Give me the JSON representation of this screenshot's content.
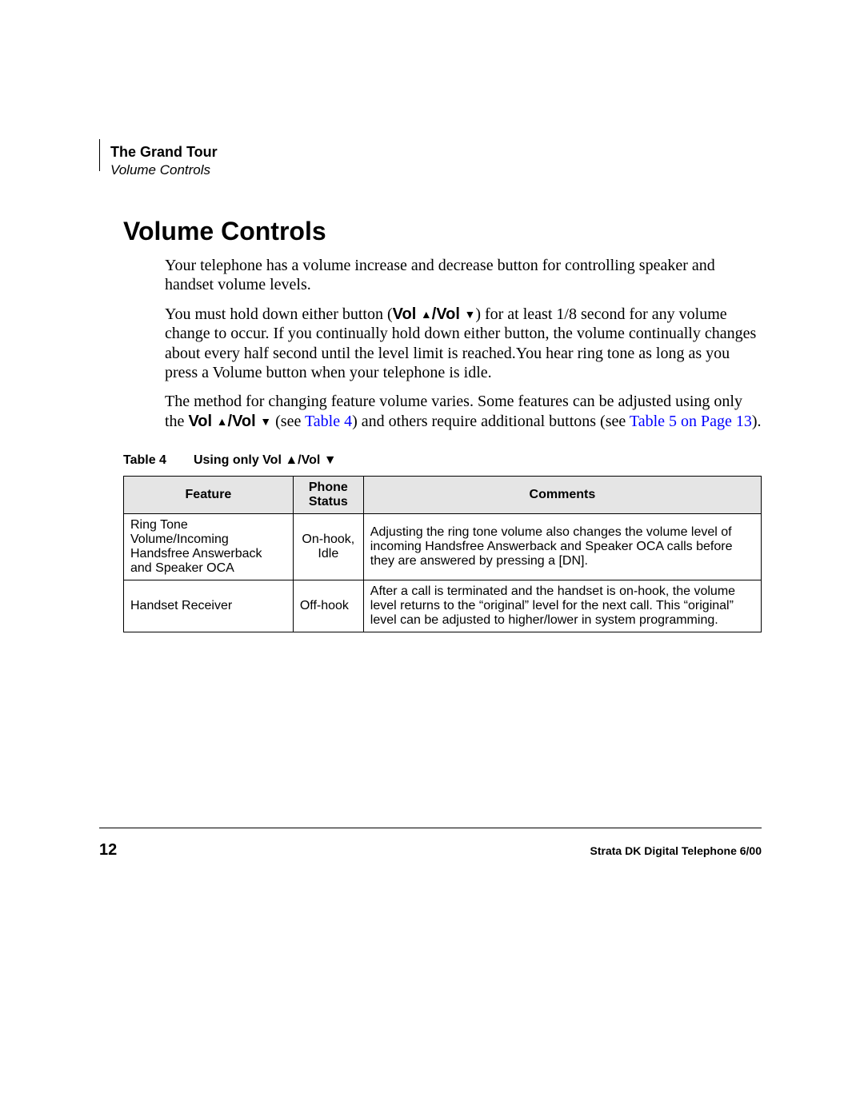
{
  "header": {
    "chapter": "The Grand Tour",
    "section": "Volume Controls"
  },
  "title": "Volume Controls",
  "paragraphs": {
    "p1": "Your telephone has a volume increase and decrease button for controlling speaker and handset volume levels.",
    "p2a": "You must hold down either button (",
    "p2_vol": "Vol",
    "p2b": ") for at least 1/8 second for any volume change to occur. If you continually hold down either button, the volume continually changes about every half second until the level limit is reached.You hear ring tone as long as you press a Volume button when your telephone is idle.",
    "p3a": "The method for changing feature volume varies. Some features can be adjusted using only the ",
    "p3_vol": "Vol",
    "p3b": " (see ",
    "p3_link1": "Table 4",
    "p3c": ") and others require additional buttons (see ",
    "p3_link2": "Table 5 on Page 13",
    "p3d": ")."
  },
  "glyphs": {
    "up": "▲",
    "down": "▼",
    "slash": "/"
  },
  "table": {
    "caption_prefix": "Table 4",
    "caption_text": "Using only Vol ▲/Vol ▼",
    "columns": [
      "Feature",
      "Phone Status",
      "Comments"
    ],
    "rows": [
      {
        "feature": "Ring Tone Volume/Incoming Handsfree Answerback and Speaker OCA",
        "status": "On-hook, Idle",
        "comments": "Adjusting the ring tone volume also changes the volume level of incoming Handsfree Answerback and Speaker OCA calls before they are answered by pressing a [DN]."
      },
      {
        "feature": "Handset Receiver",
        "status": "Off-hook",
        "comments": "After a call is terminated and the handset is on-hook, the volume level returns to the “original” level for the next call. This “original” level can be adjusted to higher/lower in system programming."
      }
    ]
  },
  "footer": {
    "page": "12",
    "title": "Strata DK Digital Telephone   6/00"
  },
  "colors": {
    "link": "#0000ff",
    "header_bg": "#e5e5e5",
    "text": "#000000",
    "page_bg": "#ffffff"
  }
}
